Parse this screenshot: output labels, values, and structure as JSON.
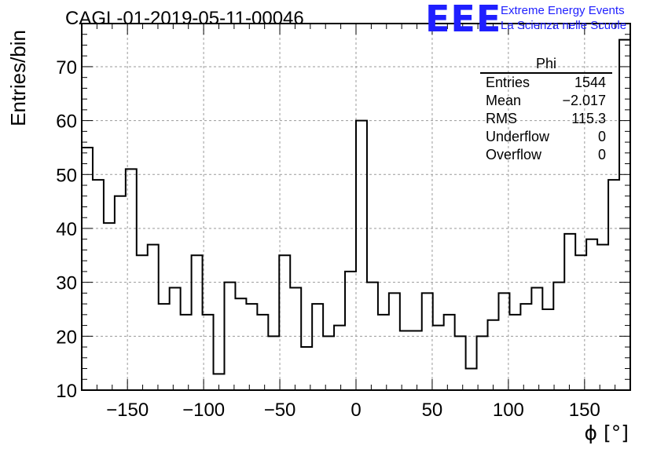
{
  "title": "CAGL-01-2019-05-11-00046",
  "logo": {
    "mark": "EEE",
    "line1": "Extreme Energy Events",
    "line2": "La Scienza nelle Scuole",
    "color": "#1f1fff"
  },
  "stats": {
    "name": "Phi",
    "rows": [
      {
        "label": "Entries",
        "value": "1544"
      },
      {
        "label": "Mean",
        "value": "−2.017"
      },
      {
        "label": "RMS",
        "value": "115.3"
      },
      {
        "label": "Underflow",
        "value": "0"
      },
      {
        "label": "Overflow",
        "value": "0"
      }
    ]
  },
  "chart_data": {
    "type": "histogram",
    "xlabel": "ϕ [°]",
    "ylabel": "Entries/bin",
    "xlim": [
      -180,
      180
    ],
    "ylim": [
      10,
      78
    ],
    "grid": true,
    "bin_width": 7.2,
    "bin_edges_start": -180,
    "xticks": [
      -150,
      -100,
      -50,
      0,
      50,
      100,
      150
    ],
    "yticks": [
      10,
      20,
      30,
      40,
      50,
      60,
      70
    ],
    "values": [
      55,
      49,
      41,
      46,
      51,
      35,
      37,
      26,
      29,
      24,
      35,
      24,
      13,
      30,
      27,
      26,
      24,
      20,
      35,
      29,
      18,
      26,
      20,
      22,
      32,
      60,
      30,
      24,
      28,
      21,
      21,
      28,
      22,
      24,
      20,
      14,
      20,
      23,
      28,
      24,
      26,
      29,
      25,
      30,
      39,
      35,
      38,
      37,
      49,
      75
    ]
  }
}
